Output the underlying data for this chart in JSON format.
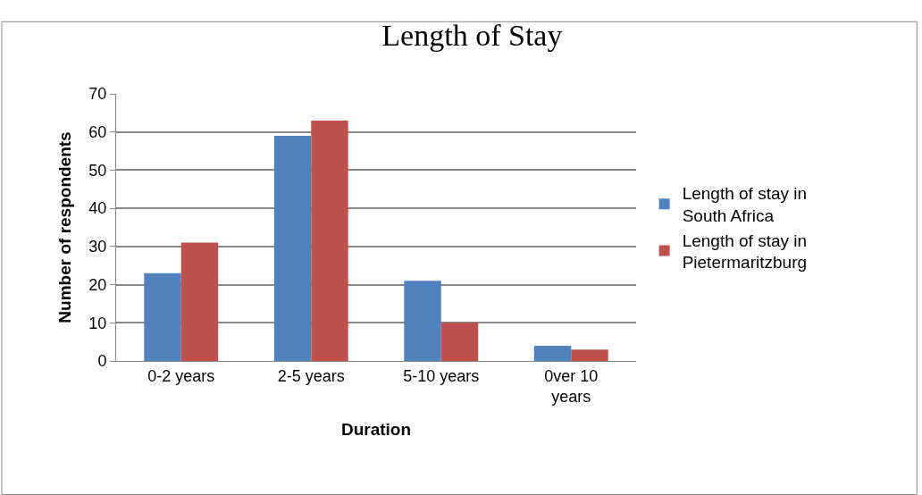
{
  "chart_data": {
    "type": "bar",
    "title": "Length of Stay",
    "xlabel": "Duration",
    "ylabel": "Number of respondents",
    "categories": [
      "0-2 years",
      "2-5 years",
      "5-10 years",
      "0ver 10 years"
    ],
    "series": [
      {
        "name": "Length of stay in South Africa",
        "color": "#4f81bd",
        "values": [
          23,
          59,
          21,
          4
        ]
      },
      {
        "name": "Length of stay in Pietermaritzburg",
        "color": "#c0504d",
        "values": [
          31,
          63,
          10,
          3
        ]
      }
    ],
    "ylim": [
      0,
      70
    ],
    "yticks": [
      0,
      10,
      20,
      30,
      40,
      50,
      60,
      70
    ],
    "grid": "y",
    "legend": "right"
  }
}
